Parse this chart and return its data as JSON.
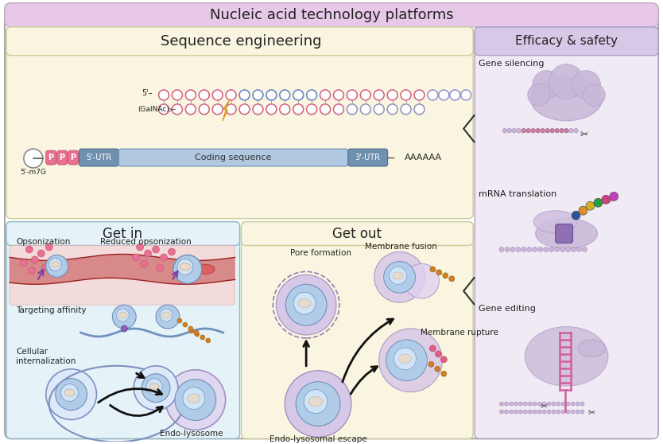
{
  "title": "Nucleic acid technology platforms",
  "seq_eng_title": "Sequence engineering",
  "efficacy_title": "Efficacy & safety",
  "get_in_title": "Get in",
  "get_out_title": "Get out",
  "label_opsonization": "Opsonization",
  "label_reduced": "Reduced opsonization",
  "label_targeting": "Targeting affinity",
  "label_cellular": "Cellular\ninternalization",
  "label_endo_lyso": "Endo-lysosome",
  "label_pore": "Pore formation",
  "label_membrane_fusion": "Membrane fusion",
  "label_membrane_rupture": "Membrane rupture",
  "label_endo_escape": "Endo-lysosomal escape",
  "label_silencing": "Gene silencing",
  "label_mrna": "mRNA translation",
  "label_editing": "Gene editing",
  "title_bg": "#e8c8e8",
  "seq_bg": "#faf5e0",
  "eff_bg": "#f0eaf5",
  "getin_bg": "#e5f2f8",
  "getout_bg": "#faf5e0",
  "light_purple": "#c8b8d8",
  "mid_purple": "#b0a0c8",
  "blue_np": "#b0cce8",
  "blue_np_dark": "#7090b8",
  "pink_np": "#e87090",
  "pink_np_dark": "#c05070",
  "blood_red": "#c03030",
  "blood_bg": "#f5d8d8",
  "utr_blue": "#7090b0",
  "coding_blue": "#b0c8e0",
  "ppp_pink": "#e87090",
  "yellow_bolt": "#f0d020",
  "orange_bolt": "#e09020",
  "orange_chain": "#d08020",
  "pink_dna": "#d060a0",
  "purple_receptor": "#9060b0",
  "protein_colors": [
    "#3050a0",
    "#e09020",
    "#d0b020",
    "#20a040",
    "#d04080",
    "#c040c0"
  ]
}
